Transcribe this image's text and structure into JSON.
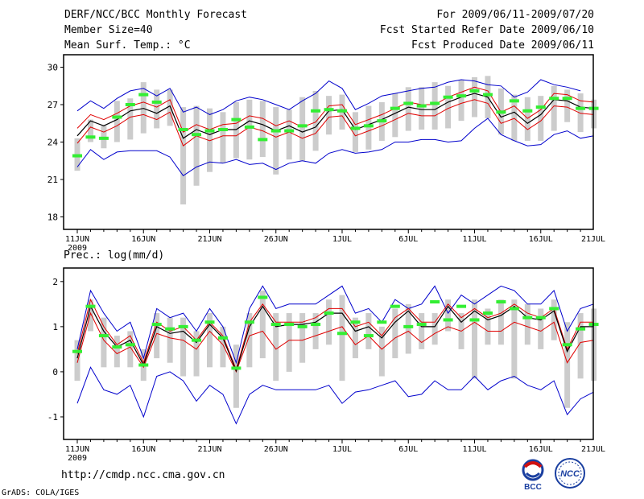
{
  "header": {
    "title": "DERF/NCC/BCC Monthly Forecast",
    "member_size": "Member Size=40",
    "variable": "Mean Surf. Temp.: °C",
    "period": "For 2009/06/11-2009/07/20",
    "fcst_started": "Fcst Started Refer Date 2009/06/10",
    "fcst_produced": "Fcst Produced Date 2009/06/11"
  },
  "footer": {
    "url": "http://cmdp.ncc.cma.gov.cn",
    "grads": "GrADS: COLA/IGES",
    "logo_bcc": "BCC",
    "logo_ncc": "NCC"
  },
  "colors": {
    "ensemble_mean": "#000000",
    "std_band": "#e00000",
    "extreme": "#0000cc",
    "member_box": "#cccccc",
    "observed_marker": "#33ee33"
  },
  "chart_data": [
    {
      "type": "line",
      "title": "Mean Surf. Temp.: °C",
      "x_tick_labels": [
        "11JUN",
        "16JUN",
        "21JUN",
        "26JUN",
        "1JUL",
        "6JUL",
        "11JUL",
        "16JUL",
        "21JUL"
      ],
      "year_label": "2009",
      "x_days": 40,
      "ylim": [
        17,
        31
      ],
      "yticks": [
        18,
        21,
        24,
        27,
        30
      ],
      "series": [
        {
          "name": "max",
          "values": [
            26.5,
            27.3,
            26.7,
            27.5,
            28.1,
            28.3,
            27.7,
            28.3,
            26.4,
            26.8,
            26.2,
            26.6,
            27.3,
            27.6,
            27.4,
            27.0,
            26.6,
            27.3,
            27.9,
            28.9,
            28.3,
            26.6,
            27.1,
            27.7,
            27.9,
            28.1,
            28.3,
            28.4,
            28.8,
            29.0,
            28.9,
            28.6,
            28.5,
            27.6,
            28.0,
            29.0,
            28.6,
            28.4,
            28.1,
            null
          ]
        },
        {
          "name": "upper_sd",
          "values": [
            25.1,
            26.2,
            25.8,
            26.3,
            26.9,
            27.2,
            26.8,
            27.4,
            24.8,
            25.4,
            25.0,
            25.4,
            25.5,
            26.1,
            25.9,
            25.3,
            25.7,
            25.2,
            25.6,
            26.9,
            27.0,
            25.4,
            25.8,
            26.2,
            26.7,
            27.2,
            27.0,
            27.0,
            27.6,
            28.0,
            28.4,
            28.1,
            26.4,
            26.9,
            25.9,
            26.6,
            27.9,
            27.8,
            27.3,
            27.2
          ]
        },
        {
          "name": "mean",
          "values": [
            24.5,
            25.7,
            25.3,
            25.8,
            26.5,
            26.7,
            26.3,
            26.9,
            24.3,
            25.0,
            24.6,
            25.0,
            25.0,
            25.7,
            25.4,
            24.9,
            25.3,
            24.8,
            25.2,
            26.5,
            26.6,
            25.0,
            25.4,
            25.8,
            26.3,
            26.8,
            26.6,
            26.6,
            27.2,
            27.6,
            27.9,
            27.6,
            26.0,
            26.4,
            25.5,
            26.2,
            27.4,
            27.3,
            26.8,
            26.7
          ]
        },
        {
          "name": "lower_sd",
          "values": [
            23.9,
            25.2,
            24.8,
            25.3,
            26.0,
            26.2,
            25.8,
            26.4,
            23.7,
            24.5,
            24.1,
            24.5,
            24.5,
            25.2,
            24.9,
            24.4,
            24.8,
            24.3,
            24.7,
            26.0,
            26.1,
            24.5,
            24.9,
            25.3,
            25.8,
            26.3,
            26.1,
            26.1,
            26.7,
            27.1,
            27.4,
            27.1,
            25.5,
            25.9,
            25.0,
            25.7,
            26.9,
            26.8,
            26.3,
            26.2
          ]
        },
        {
          "name": "min",
          "values": [
            22.0,
            23.4,
            22.6,
            23.2,
            23.3,
            23.3,
            23.3,
            22.8,
            21.3,
            22.0,
            22.4,
            22.3,
            22.6,
            22.2,
            22.3,
            21.8,
            22.3,
            22.5,
            22.3,
            23.1,
            23.4,
            23.1,
            23.2,
            23.4,
            24.0,
            24.0,
            24.2,
            24.2,
            24.0,
            24.1,
            25.1,
            25.9,
            24.6,
            24.1,
            23.7,
            23.8,
            24.6,
            24.9,
            24.3,
            24.5
          ]
        },
        {
          "name": "member_top",
          "values": [
            24.3,
            25.8,
            25.3,
            27.3,
            27.5,
            28.8,
            28.2,
            28.2,
            26.8,
            26.9,
            26.7,
            26.4,
            27.2,
            27.4,
            27.3,
            26.8,
            26.6,
            27.6,
            28.1,
            27.7,
            27.8,
            26.4,
            26.9,
            27.2,
            27.9,
            28.4,
            28.4,
            28.8,
            28.5,
            29.0,
            29.2,
            29.3,
            28.3,
            27.8,
            27.6,
            27.7,
            28.5,
            28.2,
            27.9,
            27.4
          ]
        },
        {
          "name": "member_bottom",
          "values": [
            21.7,
            24.0,
            23.5,
            24.0,
            24.2,
            24.7,
            25.1,
            25.3,
            19.0,
            20.5,
            21.6,
            22.3,
            22.7,
            22.6,
            22.8,
            21.4,
            22.6,
            22.5,
            23.3,
            24.6,
            25.0,
            23.2,
            23.4,
            24.1,
            24.4,
            24.9,
            25.0,
            25.0,
            25.1,
            25.7,
            26.0,
            25.9,
            24.6,
            24.1,
            24.1,
            24.1,
            24.9,
            25.6,
            24.8,
            25.1
          ]
        },
        {
          "name": "observed",
          "values": [
            22.9,
            24.4,
            24.3,
            26.0,
            27.0,
            27.8,
            27.2,
            null,
            25.0,
            24.6,
            24.9,
            25.0,
            25.8,
            25.2,
            24.2,
            24.9,
            24.9,
            25.3,
            26.5,
            26.6,
            26.5,
            25.1,
            25.3,
            25.7,
            26.7,
            27.1,
            26.9,
            27.1,
            27.6,
            27.7,
            28.1,
            27.8,
            26.4,
            27.3,
            26.5,
            26.8,
            27.5,
            27.5,
            26.7,
            26.7
          ]
        }
      ]
    },
    {
      "type": "line",
      "title": "Prec.: log(mm/d)",
      "x_tick_labels": [
        "11JUN",
        "16JUN",
        "21JUN",
        "26JUN",
        "1JUL",
        "6JUL",
        "11JUL",
        "16JUL",
        "21JUL"
      ],
      "year_label": "2009",
      "x_days": 40,
      "ylim": [
        -1.5,
        2.3
      ],
      "yticks": [
        -1,
        0,
        1,
        2
      ],
      "series": [
        {
          "name": "max",
          "values": [
            0.5,
            1.8,
            1.3,
            0.9,
            1.1,
            0.3,
            1.4,
            1.2,
            1.3,
            0.9,
            1.4,
            1.0,
            0.2,
            1.4,
            1.9,
            1.4,
            1.5,
            1.5,
            1.5,
            1.7,
            1.9,
            1.3,
            1.4,
            1.1,
            1.6,
            1.4,
            1.5,
            1.9,
            1.3,
            1.7,
            1.5,
            1.7,
            1.9,
            1.8,
            1.5,
            1.5,
            1.8,
            0.9,
            1.4,
            1.5
          ]
        },
        {
          "name": "upper_sd",
          "values": [
            0.4,
            1.6,
            1.0,
            0.6,
            0.8,
            0.2,
            1.1,
            0.9,
            1.0,
            0.7,
            1.1,
            0.8,
            0.05,
            1.1,
            1.5,
            1.1,
            1.1,
            1.1,
            1.2,
            1.4,
            1.4,
            1.0,
            1.1,
            0.8,
            1.2,
            1.4,
            1.1,
            1.1,
            1.5,
            1.2,
            1.4,
            1.2,
            1.3,
            1.5,
            1.3,
            1.2,
            1.4,
            0.5,
            1.1,
            1.1
          ]
        },
        {
          "name": "mean",
          "values": [
            0.3,
            1.45,
            0.9,
            0.55,
            0.7,
            0.15,
            1.0,
            0.85,
            0.9,
            0.65,
            1.05,
            0.75,
            0.02,
            1.0,
            1.45,
            1.0,
            1.05,
            1.05,
            1.1,
            1.3,
            1.3,
            0.9,
            1.0,
            0.75,
            1.1,
            1.35,
            1.0,
            1.0,
            1.45,
            1.1,
            1.35,
            1.15,
            1.25,
            1.45,
            1.2,
            1.15,
            1.35,
            0.45,
            1.0,
            1.0
          ]
        },
        {
          "name": "lower_sd",
          "values": [
            0.2,
            1.3,
            0.7,
            0.4,
            0.55,
            0.1,
            0.85,
            0.75,
            0.7,
            0.5,
            0.9,
            0.6,
            0.0,
            0.8,
            0.9,
            0.5,
            0.7,
            0.7,
            0.8,
            0.9,
            1.0,
            0.6,
            0.8,
            0.5,
            0.75,
            0.9,
            0.65,
            0.85,
            1.0,
            0.9,
            1.1,
            0.9,
            0.9,
            1.1,
            1.0,
            0.9,
            1.1,
            0.2,
            0.65,
            0.7
          ]
        },
        {
          "name": "min",
          "values": [
            -0.7,
            0.1,
            -0.4,
            -0.5,
            -0.3,
            -1.0,
            -0.1,
            0.0,
            -0.2,
            -0.65,
            -0.3,
            -0.5,
            -1.15,
            -0.5,
            -0.3,
            -0.4,
            -0.4,
            -0.4,
            -0.4,
            -0.3,
            -0.7,
            -0.45,
            -0.4,
            -0.3,
            -0.2,
            -0.55,
            -0.5,
            -0.2,
            -0.4,
            -0.4,
            -0.1,
            -0.4,
            -0.2,
            -0.1,
            -0.3,
            -0.4,
            -0.2,
            -0.95,
            -0.6,
            -0.45
          ]
        },
        {
          "name": "member_top",
          "values": [
            0.7,
            1.6,
            1.2,
            0.8,
            0.9,
            0.5,
            1.3,
            1.2,
            1.2,
            0.9,
            1.3,
            1.0,
            0.6,
            1.3,
            1.8,
            1.3,
            1.3,
            1.3,
            1.3,
            1.6,
            1.7,
            1.2,
            1.3,
            1.0,
            1.4,
            1.5,
            1.3,
            1.3,
            1.6,
            1.3,
            1.6,
            1.4,
            1.6,
            1.6,
            1.5,
            1.4,
            1.6,
            1.1,
            1.3,
            1.4
          ]
        },
        {
          "name": "member_bottom",
          "values": [
            -0.2,
            0.9,
            0.1,
            0.1,
            0.1,
            -0.2,
            0.3,
            0.2,
            -0.1,
            -0.1,
            0.1,
            0.1,
            -0.8,
            0.1,
            0.3,
            -0.2,
            0.0,
            0.2,
            0.5,
            0.6,
            -0.2,
            0.3,
            0.5,
            -0.1,
            0.3,
            0.4,
            0.5,
            0.6,
            0.9,
            0.5,
            -0.15,
            0.6,
            0.6,
            -0.15,
            0.6,
            0.5,
            0.7,
            -0.8,
            -0.15,
            -0.2
          ]
        },
        {
          "name": "observed",
          "values": [
            0.45,
            1.45,
            0.8,
            0.55,
            0.6,
            0.15,
            1.05,
            0.95,
            1.0,
            0.7,
            1.1,
            0.75,
            0.08,
            1.1,
            1.65,
            1.05,
            1.05,
            1.0,
            1.05,
            1.3,
            0.85,
            1.1,
            0.8,
            1.1,
            1.45,
            1.0,
            1.05,
            1.55,
            1.15,
            1.45,
            1.15,
            1.3,
            1.55,
            1.4,
            1.2,
            1.2,
            1.4,
            0.6,
            0.95,
            1.05
          ]
        }
      ]
    }
  ]
}
